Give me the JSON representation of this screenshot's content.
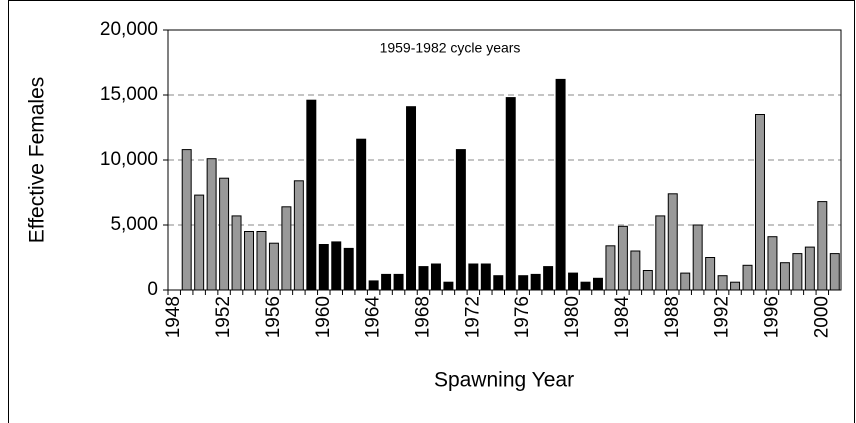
{
  "chart_data": {
    "type": "bar",
    "annotation": "1959-1982 cycle years",
    "xlabel": "Spawning Year",
    "ylabel": "Effective Females",
    "categories": [
      "1948",
      null,
      null,
      null,
      "1952",
      null,
      null,
      null,
      "1956",
      null,
      null,
      null,
      "1960",
      null,
      null,
      null,
      "1964",
      null,
      null,
      null,
      "1968",
      null,
      null,
      null,
      "1972",
      null,
      null,
      null,
      "1976",
      null,
      null,
      null,
      "1980",
      null,
      null,
      null,
      "1984",
      null,
      null,
      null,
      "1988",
      null,
      null,
      null,
      "1992",
      null,
      null,
      null,
      "1996",
      null,
      null,
      null,
      "2000",
      null
    ],
    "values": [
      null,
      10800,
      7300,
      10100,
      8600,
      5700,
      4500,
      4500,
      3600,
      6400,
      8400,
      14600,
      3500,
      3700,
      3200,
      11600,
      700,
      1200,
      1200,
      14100,
      1800,
      2000,
      600,
      10800,
      2000,
      2000,
      1100,
      14800,
      1100,
      1200,
      1800,
      16200,
      1300,
      600,
      900,
      3400,
      4900,
      3000,
      1500,
      5700,
      7400,
      1300,
      5000,
      2500,
      1100,
      600,
      1900,
      13500,
      4100,
      2100,
      2800,
      3300,
      6800,
      2800
    ],
    "colors": [
      "#999999",
      "#999999",
      "#999999",
      "#999999",
      "#999999",
      "#999999",
      "#999999",
      "#999999",
      "#999999",
      "#999999",
      "#999999",
      "#000000",
      "#000000",
      "#000000",
      "#000000",
      "#000000",
      "#000000",
      "#000000",
      "#000000",
      "#000000",
      "#000000",
      "#000000",
      "#000000",
      "#000000",
      "#000000",
      "#000000",
      "#000000",
      "#000000",
      "#000000",
      "#000000",
      "#000000",
      "#000000",
      "#000000",
      "#000000",
      "#000000",
      "#999999",
      "#999999",
      "#999999",
      "#999999",
      "#999999",
      "#999999",
      "#999999",
      "#999999",
      "#999999",
      "#999999",
      "#999999",
      "#999999",
      "#999999",
      "#999999",
      "#999999",
      "#999999",
      "#999999",
      "#999999",
      "#999999"
    ],
    "ylim": [
      0,
      20000
    ],
    "yticks": [
      0,
      {
        "value": 5000,
        "label": "5,000"
      },
      {
        "value": 10000,
        "label": "10,000"
      },
      {
        "value": 15000,
        "label": "15,000"
      },
      {
        "value": 20000,
        "label": "20,000"
      }
    ],
    "grid": true
  }
}
